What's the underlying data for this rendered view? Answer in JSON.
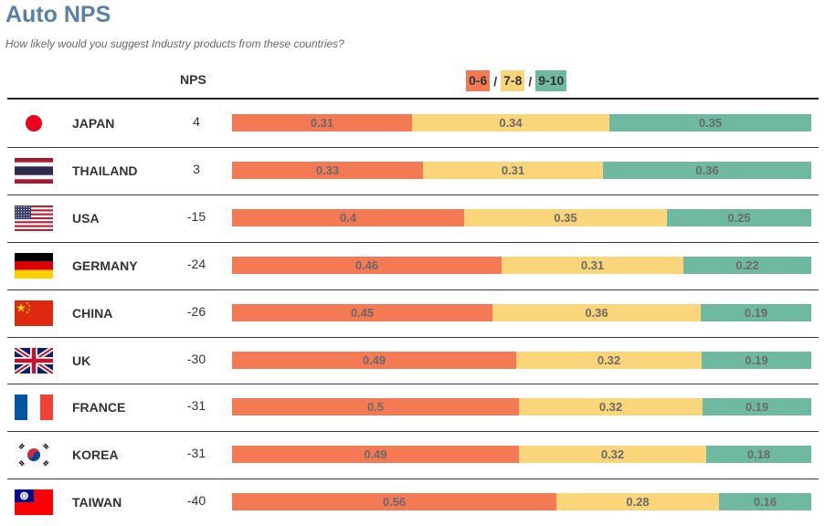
{
  "title": "Auto NPS",
  "subtitle": "How likely would you suggest Industry products from these countries?",
  "colors": {
    "detractor": "#f47a55",
    "passive": "#fbd57a",
    "promoter": "#6fb9a1",
    "title": "#5b80a5"
  },
  "chart_data": {
    "type": "bar",
    "orientation": "horizontal",
    "stacked": true,
    "nps_header": "NPS",
    "legend": [
      "0-6",
      "7-8",
      "9-10"
    ],
    "legend_separator": "/",
    "rows": [
      {
        "country": "JAPAN",
        "flag": "japan-flag",
        "nps": "4",
        "values": [
          "0.31",
          "0.34",
          "0.35"
        ]
      },
      {
        "country": "THAILAND",
        "flag": "thailand-flag",
        "nps": "3",
        "values": [
          "0.33",
          "0.31",
          "0.36"
        ]
      },
      {
        "country": "USA",
        "flag": "usa-flag",
        "nps": "-15",
        "values": [
          "0.4",
          "0.35",
          "0.25"
        ]
      },
      {
        "country": "GERMANY",
        "flag": "germany-flag",
        "nps": "-24",
        "values": [
          "0.46",
          "0.31",
          "0.22"
        ]
      },
      {
        "country": "CHINA",
        "flag": "china-flag",
        "nps": "-26",
        "values": [
          "0.45",
          "0.36",
          "0.19"
        ]
      },
      {
        "country": "UK",
        "flag": "uk-flag",
        "nps": "-30",
        "values": [
          "0.49",
          "0.32",
          "0.19"
        ]
      },
      {
        "country": "FRANCE",
        "flag": "france-flag",
        "nps": "-31",
        "values": [
          "0.5",
          "0.32",
          "0.19"
        ]
      },
      {
        "country": "KOREA",
        "flag": "korea-flag",
        "nps": "-31",
        "values": [
          "0.49",
          "0.32",
          "0.18"
        ]
      },
      {
        "country": "TAIWAN",
        "flag": "taiwan-flag",
        "nps": "-40",
        "values": [
          "0.56",
          "0.28",
          "0.16"
        ]
      }
    ]
  }
}
